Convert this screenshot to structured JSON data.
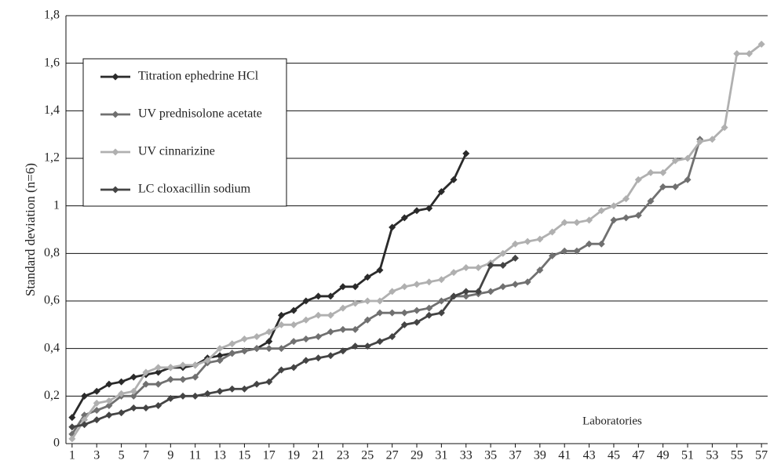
{
  "chart_data": {
    "type": "line",
    "y_label": "Standard deviation (n=6)",
    "annotation": "Laboratories",
    "xlim": [
      0.5,
      57.5
    ],
    "xticks": [
      1,
      3,
      5,
      7,
      9,
      11,
      13,
      15,
      17,
      19,
      21,
      23,
      25,
      27,
      29,
      31,
      33,
      35,
      37,
      39,
      41,
      43,
      45,
      47,
      49,
      51,
      53,
      55,
      57
    ],
    "ylim": [
      0,
      1.8
    ],
    "yticks": [
      0,
      {
        "value": 0.2,
        "label": "0,2"
      },
      {
        "value": 0.4,
        "label": "0,4"
      },
      {
        "value": 0.6,
        "label": "0,6"
      },
      {
        "value": 0.8,
        "label": "0,8"
      },
      1,
      {
        "value": 1.2,
        "label": "1,2"
      },
      {
        "value": 1.4,
        "label": "1,4"
      },
      {
        "value": 1.6,
        "label": "1,6"
      },
      {
        "value": 1.8,
        "label": "1,8"
      }
    ],
    "grid": true,
    "legend": "upper left",
    "series": [
      {
        "name": "Titration ephedrine HCl",
        "color": "#2a2a2a",
        "x": [
          1,
          2,
          3,
          4,
          5,
          6,
          7,
          8,
          9,
          10,
          11,
          12,
          13,
          14,
          15,
          16,
          17,
          18,
          19,
          20,
          21,
          22,
          23,
          24,
          25,
          26,
          27,
          28,
          29,
          30,
          31,
          32,
          33
        ],
        "values": [
          0.11,
          0.2,
          0.22,
          0.25,
          0.26,
          0.28,
          0.29,
          0.3,
          0.32,
          0.32,
          0.33,
          0.36,
          0.37,
          0.38,
          0.39,
          0.4,
          0.43,
          0.54,
          0.56,
          0.6,
          0.62,
          0.62,
          0.66,
          0.66,
          0.7,
          0.73,
          0.91,
          0.95,
          0.98,
          0.99,
          1.06,
          1.11,
          1.22
        ]
      },
      {
        "name": "UV prednisolone acetate",
        "color": "#707070",
        "x": [
          1,
          2,
          3,
          4,
          5,
          6,
          7,
          8,
          9,
          10,
          11,
          12,
          13,
          14,
          15,
          16,
          17,
          18,
          19,
          20,
          21,
          22,
          23,
          24,
          25,
          26,
          27,
          28,
          29,
          30,
          31,
          32,
          33,
          34,
          35,
          36,
          37,
          38,
          39,
          40,
          41,
          42,
          43,
          44,
          45,
          46,
          47,
          48,
          49,
          50,
          51,
          52
        ],
        "values": [
          0.04,
          0.12,
          0.14,
          0.16,
          0.2,
          0.2,
          0.25,
          0.25,
          0.27,
          0.27,
          0.28,
          0.34,
          0.35,
          0.38,
          0.39,
          0.4,
          0.4,
          0.4,
          0.43,
          0.44,
          0.45,
          0.47,
          0.48,
          0.48,
          0.52,
          0.55,
          0.55,
          0.55,
          0.56,
          0.57,
          0.6,
          0.62,
          0.62,
          0.63,
          0.64,
          0.66,
          0.67,
          0.68,
          0.73,
          0.79,
          0.81,
          0.81,
          0.84,
          0.84,
          0.94,
          0.95,
          0.96,
          1.02,
          1.08,
          1.08,
          1.11,
          1.28
        ]
      },
      {
        "name": "UV cinnarizine",
        "color": "#b0b0b0",
        "x": [
          1,
          2,
          3,
          4,
          5,
          6,
          7,
          8,
          9,
          10,
          11,
          12,
          13,
          14,
          15,
          16,
          17,
          18,
          19,
          20,
          21,
          22,
          23,
          24,
          25,
          26,
          27,
          28,
          29,
          30,
          31,
          32,
          33,
          34,
          35,
          36,
          37,
          38,
          39,
          40,
          41,
          42,
          43,
          44,
          45,
          46,
          47,
          48,
          49,
          50,
          51,
          52,
          53,
          54,
          55,
          56,
          57
        ],
        "values": [
          0.02,
          0.1,
          0.17,
          0.18,
          0.21,
          0.22,
          0.3,
          0.32,
          0.32,
          0.33,
          0.33,
          0.35,
          0.4,
          0.42,
          0.44,
          0.45,
          0.47,
          0.5,
          0.5,
          0.52,
          0.54,
          0.54,
          0.57,
          0.59,
          0.6,
          0.6,
          0.64,
          0.66,
          0.67,
          0.68,
          0.69,
          0.72,
          0.74,
          0.74,
          0.76,
          0.8,
          0.84,
          0.85,
          0.86,
          0.89,
          0.93,
          0.93,
          0.94,
          0.98,
          1.0,
          1.03,
          1.11,
          1.14,
          1.14,
          1.19,
          1.2,
          1.27,
          1.28,
          1.33,
          1.64,
          1.64,
          1.68
        ]
      },
      {
        "name": "LC cloxacillin sodium",
        "color": "#444444",
        "x": [
          1,
          2,
          3,
          4,
          5,
          6,
          7,
          8,
          9,
          10,
          11,
          12,
          13,
          14,
          15,
          16,
          17,
          18,
          19,
          20,
          21,
          22,
          23,
          24,
          25,
          26,
          27,
          28,
          29,
          30,
          31,
          32,
          33,
          34,
          35,
          36,
          37
        ],
        "values": [
          0.07,
          0.08,
          0.1,
          0.12,
          0.13,
          0.15,
          0.15,
          0.16,
          0.19,
          0.2,
          0.2,
          0.21,
          0.22,
          0.23,
          0.23,
          0.25,
          0.26,
          0.31,
          0.32,
          0.35,
          0.36,
          0.37,
          0.39,
          0.41,
          0.41,
          0.43,
          0.45,
          0.5,
          0.51,
          0.54,
          0.55,
          0.62,
          0.64,
          0.64,
          0.75,
          0.75,
          0.78
        ]
      }
    ]
  }
}
